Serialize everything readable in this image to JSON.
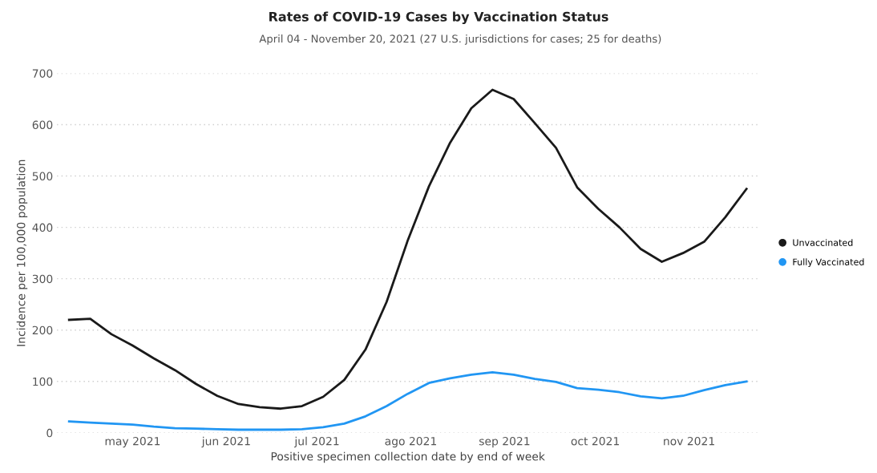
{
  "chart_data": {
    "type": "line",
    "title": "Rates of COVID-19 Cases by Vaccination Status",
    "subtitle": "April 04 - November 20, 2021 (27 U.S. jurisdictions for cases; 25 for deaths)",
    "xlabel": "Positive specimen collection date by end of week",
    "ylabel": "Incidence per 100,000 population",
    "x": [
      "2021-04-10",
      "2021-04-17",
      "2021-04-24",
      "2021-05-01",
      "2021-05-08",
      "2021-05-15",
      "2021-05-22",
      "2021-05-29",
      "2021-06-05",
      "2021-06-12",
      "2021-06-19",
      "2021-06-26",
      "2021-07-03",
      "2021-07-10",
      "2021-07-17",
      "2021-07-24",
      "2021-07-31",
      "2021-08-07",
      "2021-08-14",
      "2021-08-21",
      "2021-08-28",
      "2021-09-04",
      "2021-09-11",
      "2021-09-18",
      "2021-09-25",
      "2021-10-02",
      "2021-10-09",
      "2021-10-16",
      "2021-10-23",
      "2021-10-30",
      "2021-11-06",
      "2021-11-13",
      "2021-11-20"
    ],
    "series": [
      {
        "name": "Unvaccinated",
        "color": "#1a1a1a",
        "values": [
          220,
          222,
          192,
          170,
          145,
          122,
          95,
          72,
          56,
          50,
          47,
          52,
          70,
          103,
          162,
          255,
          375,
          480,
          565,
          632,
          668,
          650,
          603,
          555,
          478,
          436,
          400,
          358,
          333,
          350,
          372,
          420,
          475
        ]
      },
      {
        "name": "Fully Vaccinated",
        "color": "#2196f3",
        "values": [
          22,
          20,
          18,
          16,
          12,
          9,
          8,
          7,
          6,
          6,
          6,
          7,
          11,
          18,
          32,
          52,
          76,
          97,
          106,
          113,
          118,
          113,
          105,
          99,
          87,
          84,
          79,
          71,
          67,
          72,
          83,
          93,
          100
        ]
      }
    ],
    "xlim": [
      "2021-04-06",
      "2021-11-24"
    ],
    "xticks": [
      {
        "value": "2021-05-01",
        "label": "may 2021"
      },
      {
        "value": "2021-06-01",
        "label": "jun 2021"
      },
      {
        "value": "2021-07-01",
        "label": "jul 2021"
      },
      {
        "value": "2021-08-01",
        "label": "ago 2021"
      },
      {
        "value": "2021-09-01",
        "label": "sep 2021"
      },
      {
        "value": "2021-10-01",
        "label": "oct 2021"
      },
      {
        "value": "2021-11-01",
        "label": "nov 2021"
      }
    ],
    "ylim": [
      0,
      700
    ],
    "yticks": [
      0,
      100,
      200,
      300,
      400,
      500,
      600,
      700
    ],
    "grid": "y",
    "legend": "right",
    "marker": "none",
    "line_style": "solid"
  }
}
